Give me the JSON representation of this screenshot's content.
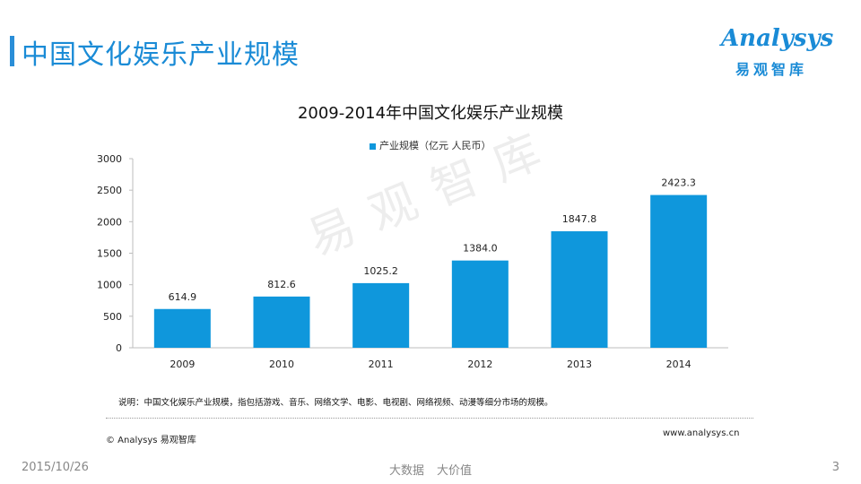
{
  "header": {
    "title": "中国文化娱乐产业规模",
    "accent_color": "#1a8bd6"
  },
  "logo": {
    "word": "Analysys",
    "cn": "易观智库"
  },
  "watermark": "易观智库",
  "chart_data": {
    "type": "bar",
    "title": "2009-2014年中国文化娱乐产业规模",
    "categories": [
      "2009",
      "2010",
      "2011",
      "2012",
      "2013",
      "2014"
    ],
    "series": [
      {
        "name": "产业规模（亿元 人民币）",
        "values": [
          614.9,
          812.6,
          1025.2,
          1384.0,
          1847.8,
          2423.3
        ],
        "labels": [
          "614.9",
          "812.6",
          "1025.2",
          "1384.0",
          "1847.8",
          "2423.3"
        ],
        "color": "#0f97dc"
      }
    ],
    "ylim": [
      0,
      3000
    ],
    "yticks": [
      0,
      500,
      1000,
      1500,
      2000,
      2500,
      3000
    ],
    "grid": false,
    "legend_position": "top-center",
    "xlabel": "",
    "ylabel": ""
  },
  "footer": {
    "note": "说明：中国文化娱乐产业规模，指包括游戏、音乐、网络文学、电影、电视剧、网络视频、动漫等细分市场的规模。",
    "copyright": "© Analysys 易观智库",
    "website": "www.analysys.cn",
    "date": "2015/10/26",
    "slogan_1": "大数据",
    "slogan_2": "大价值",
    "page_number": "3"
  }
}
